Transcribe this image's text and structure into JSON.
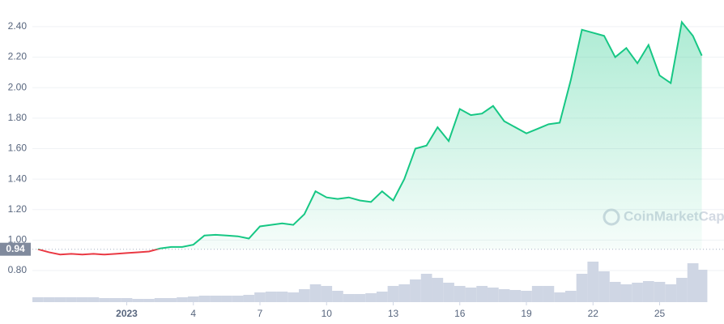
{
  "chart_data": {
    "type": "line",
    "x": [
      -3,
      -2.5,
      -2,
      -1.5,
      -1,
      -0.5,
      0,
      0.5,
      1,
      1.5,
      2,
      2.5,
      3,
      3.5,
      4,
      4.5,
      5,
      5.5,
      6,
      6.5,
      7,
      7.5,
      8,
      8.5,
      9,
      9.5,
      10,
      10.5,
      11,
      11.5,
      12,
      12.5,
      13,
      13.5,
      14,
      14.5,
      15,
      15.5,
      16,
      16.5,
      17,
      17.5,
      18,
      18.5,
      19,
      19.5,
      20,
      20.5,
      21,
      21.5,
      22,
      22.5,
      23,
      23.5,
      24,
      24.5,
      25,
      25.5,
      26,
      26.5,
      26.9
    ],
    "series": [
      {
        "color": "#16c784",
        "values": [
          0.94,
          0.92,
          0.905,
          0.91,
          0.905,
          0.91,
          0.905,
          0.91,
          0.915,
          0.92,
          0.925,
          0.945,
          0.955,
          0.955,
          0.97,
          1.03,
          1.035,
          1.03,
          1.025,
          1.01,
          1.09,
          1.1,
          1.11,
          1.1,
          1.17,
          1.32,
          1.28,
          1.27,
          1.28,
          1.26,
          1.25,
          1.32,
          1.26,
          1.4,
          1.6,
          1.62,
          1.74,
          1.65,
          1.86,
          1.82,
          1.83,
          1.88,
          1.78,
          1.74,
          1.7,
          1.73,
          1.76,
          1.77,
          2.05,
          2.38,
          2.36,
          2.34,
          2.2,
          2.26,
          2.16,
          2.28,
          2.08,
          2.03,
          2.43,
          2.34,
          2.21
        ]
      }
    ],
    "below_color": "#ea3943",
    "reference": 0.94,
    "volume": {
      "color": "#cfd6e4",
      "values": [
        6,
        6,
        6,
        6,
        6,
        6,
        5,
        5,
        5,
        4,
        4,
        5,
        5,
        6,
        7,
        8,
        8,
        8,
        8,
        9,
        12,
        13,
        13,
        12,
        16,
        22,
        20,
        14,
        10,
        10,
        11,
        13,
        20,
        22,
        28,
        35,
        30,
        24,
        20,
        18,
        20,
        18,
        16,
        15,
        14,
        20,
        20,
        12,
        14,
        35,
        50,
        38,
        25,
        22,
        24,
        26,
        25,
        22,
        30,
        48,
        40
      ]
    },
    "xlim": [
      -3.25,
      27.9
    ],
    "ylim": [
      0.593,
      2.575
    ],
    "xticks": [
      {
        "value": 1,
        "label": "2023"
      },
      4,
      7,
      10,
      13,
      16,
      19,
      22,
      25
    ],
    "yticks": [
      {
        "value": 0.8,
        "label": "0.80"
      },
      {
        "value": 1,
        "label": "1.00"
      },
      {
        "value": 1.2,
        "label": "1.20"
      },
      {
        "value": 1.4,
        "label": "1.40"
      },
      {
        "value": 1.6,
        "label": "1.60"
      },
      {
        "value": 1.8,
        "label": "1.80"
      },
      {
        "value": 2,
        "label": "2.00"
      },
      {
        "value": 2.2,
        "label": "2.20"
      },
      {
        "value": 2.4,
        "label": "2.40"
      }
    ],
    "grid": true,
    "watermark": "CoinMarketCap"
  }
}
